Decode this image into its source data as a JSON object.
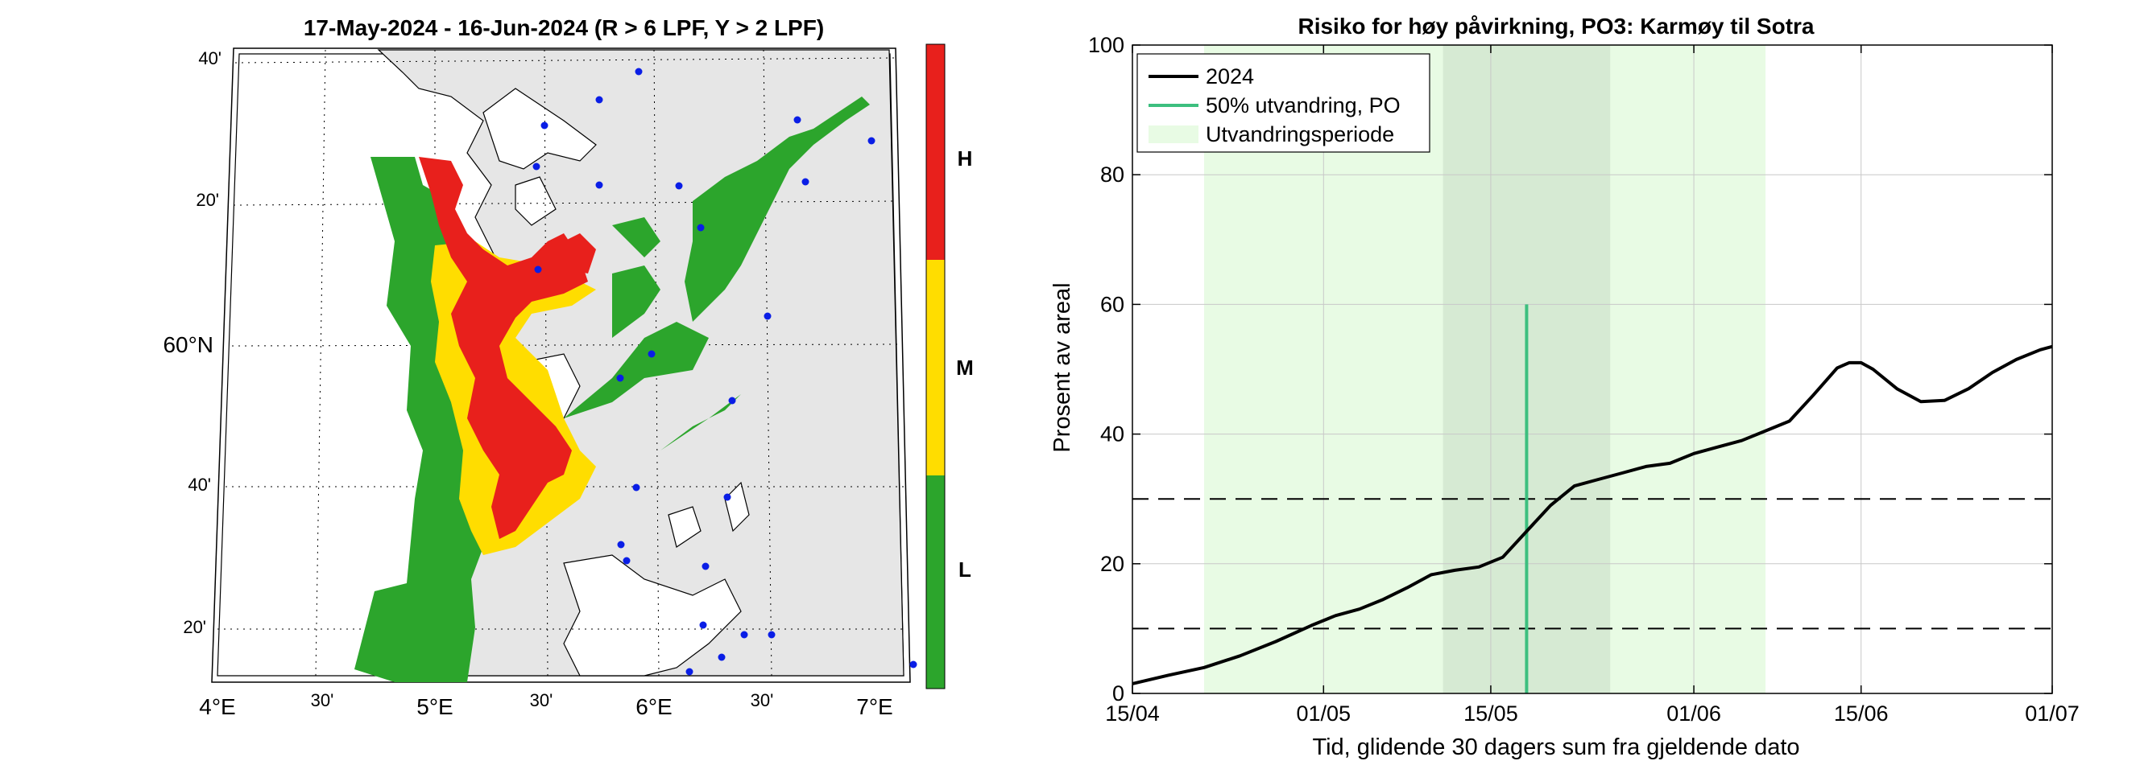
{
  "map_panel": {
    "title": "17-May-2024  - 16-Jun-2024  (R > 6 LPF, Y > 2 LPF)",
    "lat_ticks": [
      "40'",
      "20'",
      "60°N",
      "40'",
      "20'"
    ],
    "lon_ticks": [
      "4°E",
      "30'",
      "5°E",
      "30'",
      "6°E",
      "30'",
      "7°E"
    ],
    "colorbar": {
      "levels": [
        {
          "label": "H",
          "color": "#e8201c"
        },
        {
          "label": "M",
          "color": "#ffdd00"
        },
        {
          "label": "L",
          "color": "#2ca52c"
        }
      ]
    },
    "land_color": "#e6e6e6",
    "site_color": "#0a1ee6"
  },
  "chart_data": {
    "type": "line",
    "title": "Risiko for høy påvirkning, PO3: Karmøy til Sotra",
    "xlabel": "Tid, glidende 30 dagers sum fra gjeldende dato",
    "ylabel": "Prosent av areal",
    "xlim": [
      "2024-04-15",
      "2024-07-01"
    ],
    "ylim": [
      0,
      100
    ],
    "x_ticks": [
      "15/04",
      "01/05",
      "15/05",
      "01/06",
      "15/06",
      "01/07"
    ],
    "y_ticks": [
      0,
      20,
      40,
      60,
      80,
      100
    ],
    "grid": true,
    "legend_position": "top-left",
    "legend": [
      "2024",
      "50% utvandring, PO",
      "Utvandringsperiode"
    ],
    "series": [
      {
        "name": "2024",
        "color": "#000000",
        "x": [
          "2024-04-15",
          "2024-04-18",
          "2024-04-21",
          "2024-04-24",
          "2024-04-27",
          "2024-04-30",
          "2024-05-02",
          "2024-05-04",
          "2024-05-06",
          "2024-05-08",
          "2024-05-10",
          "2024-05-12",
          "2024-05-14",
          "2024-05-16",
          "2024-05-18",
          "2024-05-20",
          "2024-05-22",
          "2024-05-24",
          "2024-05-26",
          "2024-05-28",
          "2024-05-30",
          "2024-06-01",
          "2024-06-03",
          "2024-06-05",
          "2024-06-07",
          "2024-06-09",
          "2024-06-11",
          "2024-06-13",
          "2024-06-14",
          "2024-06-15",
          "2024-06-16",
          "2024-06-18",
          "2024-06-20",
          "2024-06-22",
          "2024-06-24",
          "2024-06-26",
          "2024-06-28",
          "2024-06-30",
          "2024-07-01"
        ],
        "y": [
          1.5,
          2.8,
          4,
          5.8,
          8,
          10.5,
          12,
          13,
          14.5,
          16.3,
          18.3,
          19,
          19.5,
          21,
          25,
          29,
          32,
          33,
          34,
          35,
          35.5,
          37,
          38,
          39,
          40.5,
          42,
          46,
          50.2,
          51,
          51,
          50,
          47,
          45,
          45.2,
          47,
          49.5,
          51.5,
          53,
          53.5
        ]
      }
    ],
    "reference_lines": [
      {
        "type": "horizontal",
        "y": 10,
        "style": "dashed"
      },
      {
        "type": "horizontal",
        "y": 30,
        "style": "dashed"
      },
      {
        "type": "vertical",
        "label": "50% utvandring, PO",
        "x": "2024-05-18",
        "y_range": [
          0,
          60
        ],
        "color": "#3dbf7f"
      }
    ],
    "shaded_regions": [
      {
        "label": "Utvandringsperiode",
        "x_range": [
          "2024-04-21",
          "2024-06-07"
        ],
        "color": "#e8fbe4"
      },
      {
        "x_range": [
          "2024-05-11",
          "2024-05-25"
        ],
        "color": "#d6ead3"
      }
    ]
  }
}
